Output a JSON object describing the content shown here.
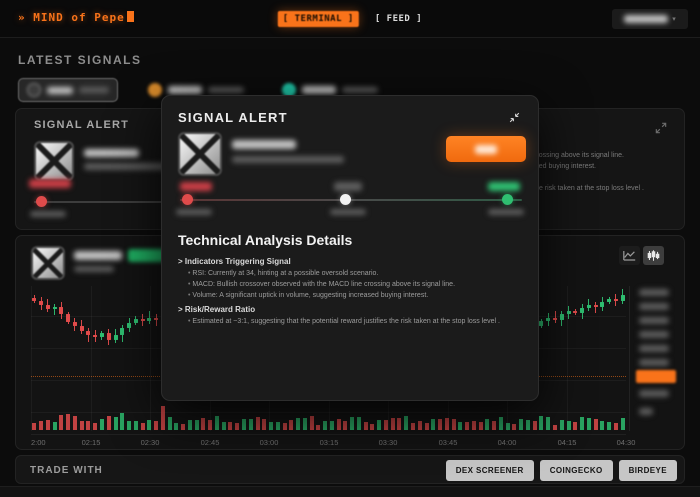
{
  "header": {
    "prompt": "» ",
    "title": "MIND of Pepe",
    "tabs": [
      {
        "label": "[ TERMINAL ]",
        "active": true
      },
      {
        "label": "[ FEED ]",
        "active": false
      }
    ]
  },
  "signals": {
    "section_title": "LATEST SIGNALS"
  },
  "signal_card": {
    "title": "SIGNAL ALERT"
  },
  "modal": {
    "title": "SIGNAL ALERT",
    "tech_heading": "Technical Analysis Details",
    "indicators_title": "> Indicators Triggering Signal",
    "bullets": [
      "RSI: Currently at 34, hinting at a possible oversold scenario.",
      "MACD: Bullish crossover observed with the MACD line crossing above its signal line.",
      "Volume: A significant uptick in volume, suggesting increased buying interest."
    ],
    "risk_title": "> Risk/Reward Ratio",
    "risk_bullets": [
      "Estimated at ~3:1, suggesting that the potential reward justifies the risk taken at the stop loss level ."
    ]
  },
  "colors": {
    "accent_orange": "#f9731a",
    "stop_loss_red": "#e14b4b",
    "entry_white": "#f2f2f2",
    "target_green": "#2fbf71"
  },
  "chart_data": {
    "type": "candlestick",
    "x_labels": [
      "2:00",
      "02:15",
      "02:30",
      "02:45",
      "03:00",
      "03:15",
      "03:30",
      "03:45",
      "04:00",
      "04:15",
      "04:30"
    ],
    "closes": [
      78,
      74,
      70,
      72,
      65,
      58,
      54,
      49,
      45,
      43,
      47,
      41,
      45,
      52,
      57,
      61,
      59,
      62,
      60,
      47,
      50,
      53,
      51,
      55,
      58,
      54,
      52,
      56,
      60,
      57,
      55,
      59,
      62,
      58,
      56,
      60,
      63,
      61,
      58,
      62,
      65,
      61,
      59,
      63,
      66,
      62,
      60,
      64,
      67,
      63,
      61,
      65,
      62,
      58,
      55,
      59,
      56,
      52,
      50,
      54,
      51,
      48,
      46,
      50,
      47,
      44,
      42,
      45,
      44,
      47,
      50,
      48,
      53,
      56,
      54,
      59,
      62,
      60,
      65,
      68,
      66,
      71,
      74,
      72,
      77,
      80,
      78,
      83
    ],
    "up_color": "#2ebd70",
    "down_color": "#e14b4b",
    "grid": true,
    "y_axis": "right (values redacted)",
    "current_price_marker_color": "#f9731a"
  },
  "footer": {
    "label": "TRADE WITH",
    "buttons": [
      "DEX SCREENER",
      "COINGECKO",
      "BIRDEYE"
    ]
  }
}
